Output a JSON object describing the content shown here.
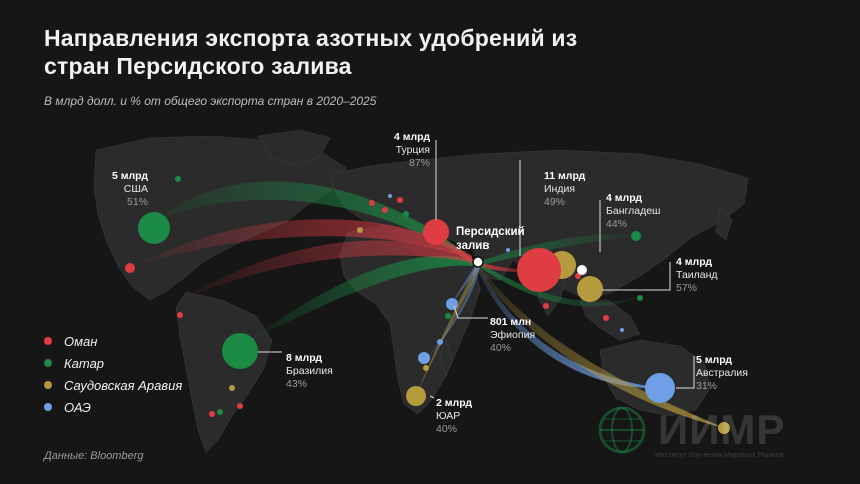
{
  "title": "Направления экспорта азотных удобрений из стран Персидского залива",
  "subtitle": "В млрд долл. и % от общего экспорта стран в 2020–2025",
  "source": "Данные: Bloomberg",
  "hub_label": "Персидский залив",
  "colors": {
    "Оман": "#e03c44",
    "Катар": "#1b8a45",
    "Саудовская Аравия": "#b59a3e",
    "ОАЭ": "#6f9fe6"
  },
  "legend": [
    {
      "name": "Оман",
      "color": "#e03c44"
    },
    {
      "name": "Катар",
      "color": "#1b8a45"
    },
    {
      "name": "Саудовская Аравия",
      "color": "#b59a3e"
    },
    {
      "name": "ОАЭ",
      "color": "#6f9fe6"
    }
  ],
  "destinations": [
    {
      "country": "США",
      "value": "5 млрд",
      "share": "51%",
      "amount_bn": 5,
      "share_pct": 51,
      "exporter": "Катар"
    },
    {
      "country": "Турция",
      "value": "4 млрд",
      "share": "87%",
      "amount_bn": 4,
      "share_pct": 87,
      "exporter": "Оман"
    },
    {
      "country": "Индия",
      "value": "11 млрд",
      "share": "49%",
      "amount_bn": 11,
      "share_pct": 49,
      "exporter": "Оман"
    },
    {
      "country": "Бангладеш",
      "value": "4 млрд",
      "share": "44%",
      "amount_bn": 4,
      "share_pct": 44,
      "exporter": "Катар"
    },
    {
      "country": "Таиланд",
      "value": "4 млрд",
      "share": "57%",
      "amount_bn": 4,
      "share_pct": 57,
      "exporter": "Саудовская Аравия"
    },
    {
      "country": "Бразилия",
      "value": "8 млрд",
      "share": "43%",
      "amount_bn": 8,
      "share_pct": 43,
      "exporter": "Катар"
    },
    {
      "country": "Эфиопия",
      "value": "801 млн",
      "share": "40%",
      "amount_bn": 0.801,
      "share_pct": 40,
      "exporter": "ОАЭ"
    },
    {
      "country": "ЮАР",
      "value": "2 млрд",
      "share": "40%",
      "amount_bn": 2,
      "share_pct": 40,
      "exporter": "Саудовская Аравия"
    },
    {
      "country": "Австралия",
      "value": "5 млрд",
      "share": "31%",
      "amount_bn": 5,
      "share_pct": 31,
      "exporter": "ОАЭ"
    }
  ],
  "logo": {
    "text": "ИИМР",
    "subtitle": "Институт Изучения Мировых Рынков"
  }
}
